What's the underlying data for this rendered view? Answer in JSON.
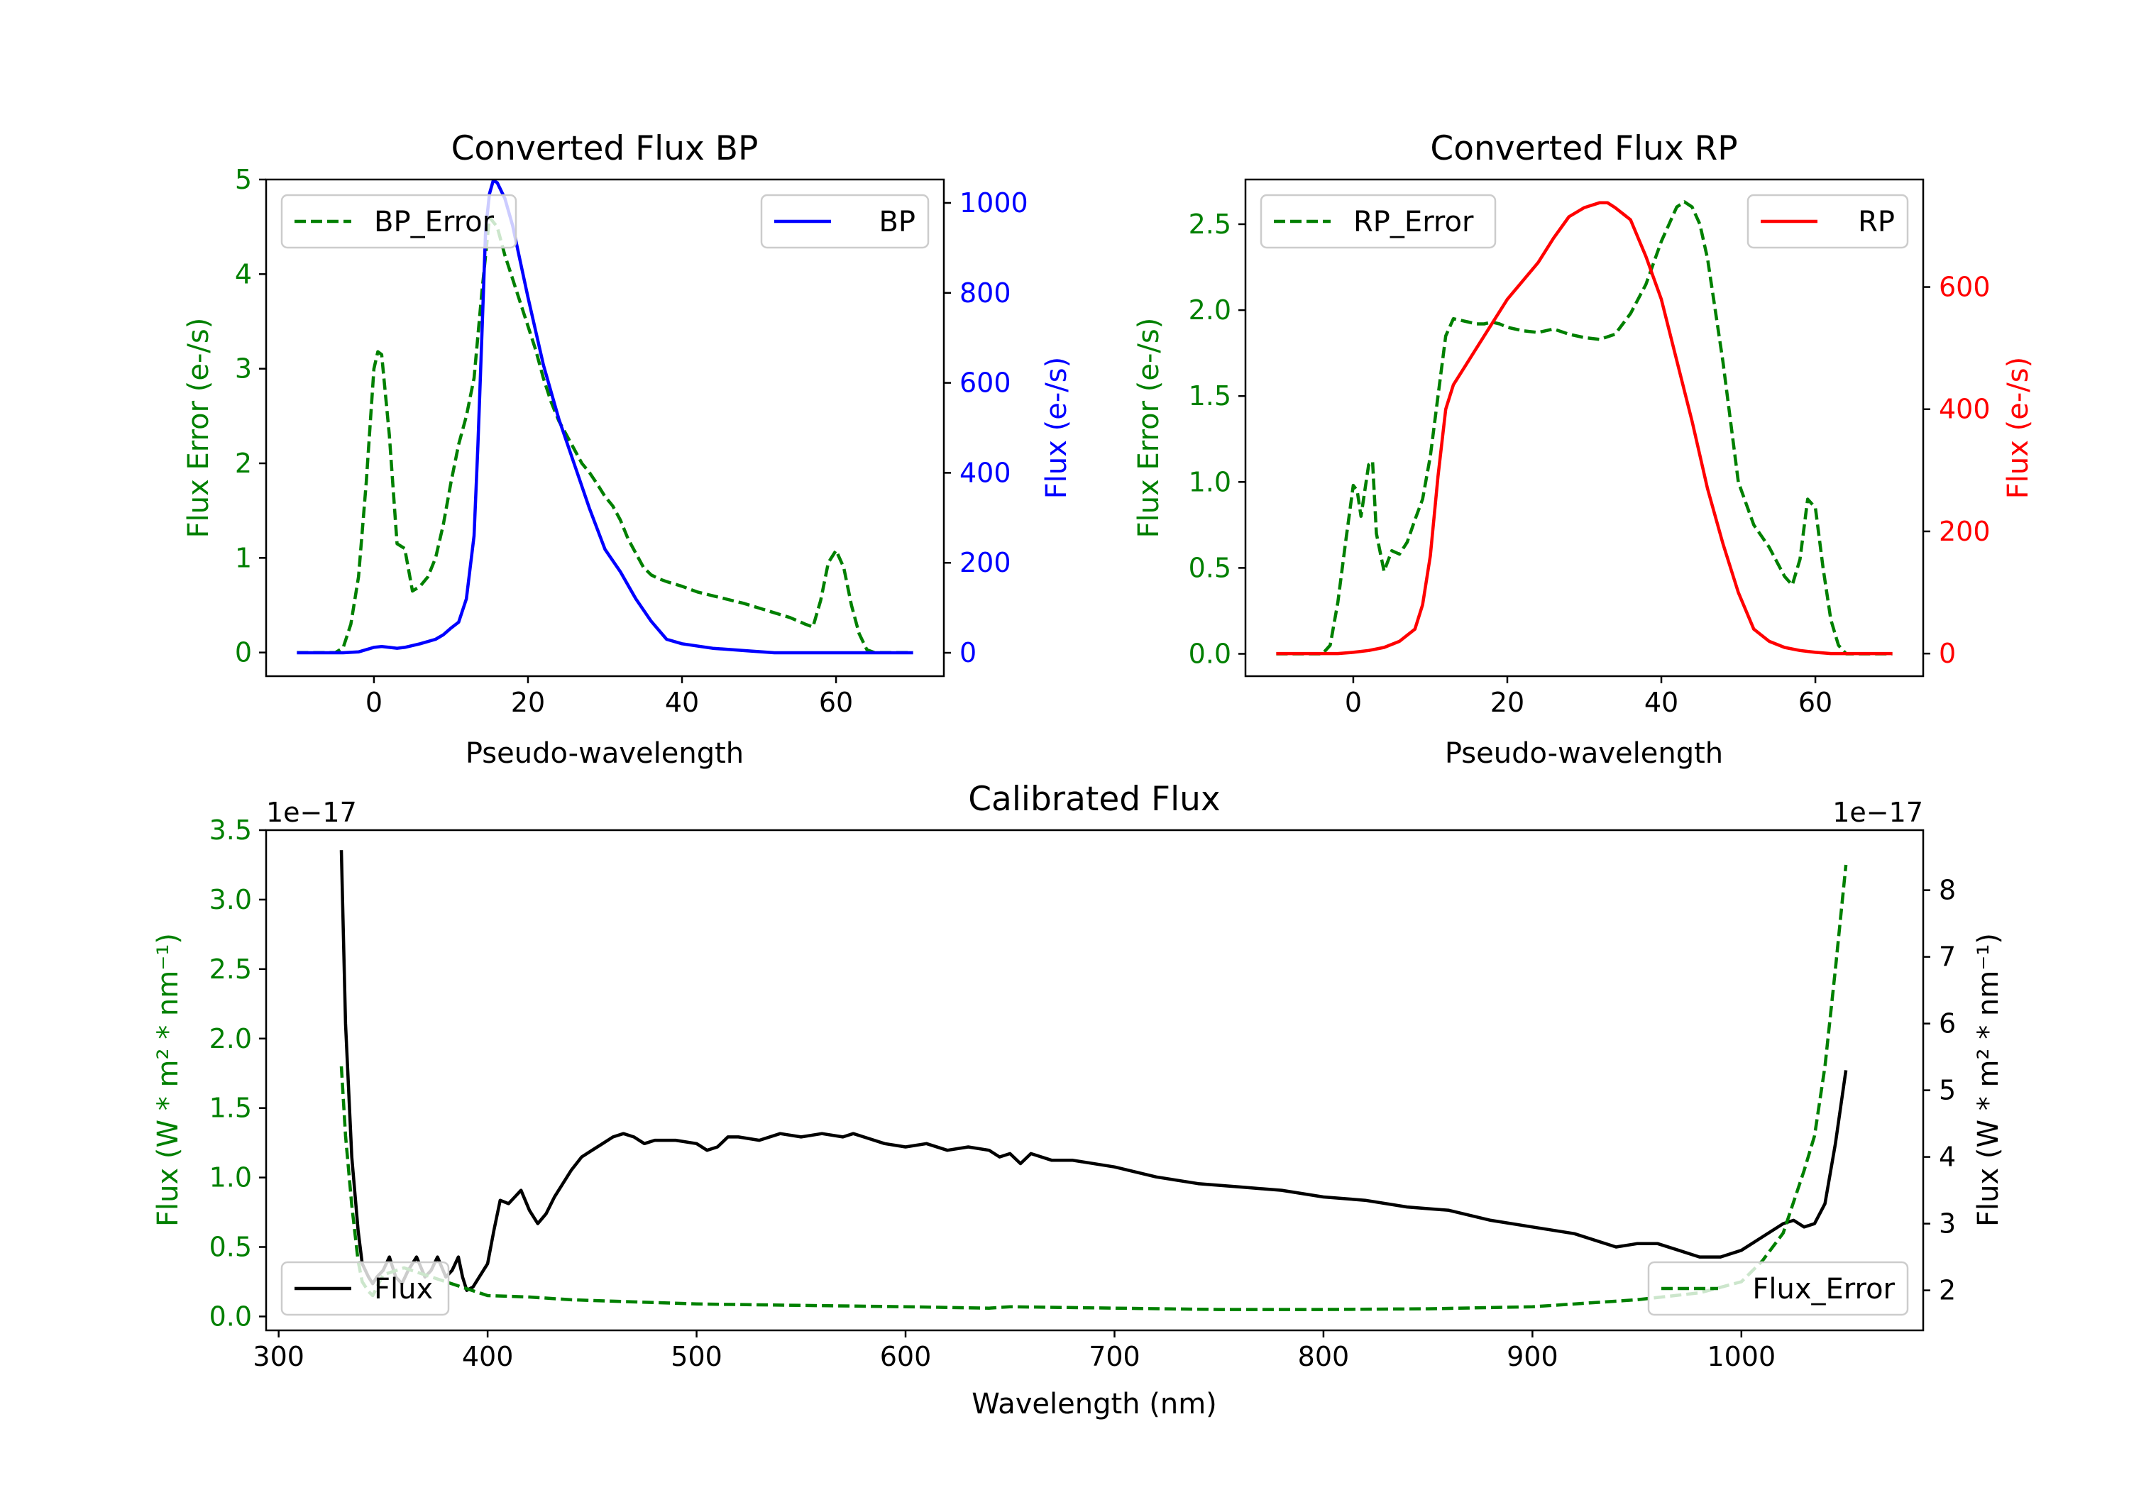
{
  "colors": {
    "error": "#008000",
    "bp": "#0000ff",
    "rp": "#ff0000",
    "flux": "#000000",
    "axis": "#000000"
  },
  "chart_data": [
    {
      "id": "bp",
      "type": "line",
      "title": "Converted Flux BP",
      "xlabel": "Pseudo-wavelength",
      "ylabel_left": "Flux Error (e-/s)",
      "ylabel_right": "Flux (e-/s)",
      "xlim": [
        -14,
        74
      ],
      "ylim_left": [
        -0.25,
        5.0
      ],
      "ylim_right": [
        -52,
        1052
      ],
      "xticks": [
        0,
        20,
        40,
        60
      ],
      "xtick_labels": [
        "0",
        "20",
        "40",
        "60"
      ],
      "yticks_left": [
        0,
        1,
        2,
        3,
        4,
        5
      ],
      "ytick_labels_left": [
        "0",
        "1",
        "2",
        "3",
        "4",
        "5"
      ],
      "yticks_right": [
        0,
        200,
        400,
        600,
        800,
        1000
      ],
      "ytick_labels_right": [
        "0",
        "200",
        "400",
        "600",
        "800",
        "1000"
      ],
      "legend_left": {
        "label": "BP_Error",
        "position": "upper left"
      },
      "legend_right": {
        "label": "BP",
        "position": "upper right"
      },
      "series": [
        {
          "name": "BP_Error",
          "axis": "left",
          "color": "error",
          "dash": true,
          "x": [
            -10,
            -5,
            -4,
            -3,
            -2,
            -1,
            0,
            0.5,
            1,
            2,
            3,
            4,
            5,
            6,
            7,
            8,
            9,
            10,
            11,
            12,
            13,
            14,
            15,
            16,
            17,
            18,
            19,
            20,
            21,
            22,
            23,
            24,
            25,
            26,
            27,
            28,
            29,
            30,
            31,
            32,
            33,
            34,
            35,
            36,
            37,
            38,
            40,
            42,
            44,
            46,
            48,
            50,
            52,
            54,
            56,
            57,
            58,
            59,
            60,
            61,
            62,
            63,
            64,
            65,
            66,
            68,
            70
          ],
          "y": [
            0,
            0,
            0.05,
            0.3,
            0.8,
            1.8,
            3.0,
            3.18,
            3.15,
            2.3,
            1.15,
            1.1,
            0.65,
            0.7,
            0.8,
            1.0,
            1.35,
            1.8,
            2.2,
            2.5,
            2.9,
            3.8,
            4.6,
            4.5,
            4.2,
            3.95,
            3.7,
            3.45,
            3.2,
            2.9,
            2.65,
            2.45,
            2.3,
            2.15,
            2.0,
            1.9,
            1.78,
            1.65,
            1.55,
            1.4,
            1.2,
            1.05,
            0.9,
            0.82,
            0.78,
            0.75,
            0.7,
            0.64,
            0.6,
            0.56,
            0.52,
            0.47,
            0.42,
            0.37,
            0.3,
            0.27,
            0.55,
            0.95,
            1.08,
            0.9,
            0.5,
            0.2,
            0.03,
            0,
            0,
            0,
            0
          ]
        },
        {
          "name": "BP",
          "axis": "right",
          "color": "bp",
          "dash": false,
          "x": [
            -10,
            -6,
            -4,
            -2,
            0,
            1,
            2,
            3,
            4,
            6,
            8,
            9,
            10,
            11,
            12,
            13,
            13.5,
            14,
            14.5,
            15,
            15.5,
            16,
            17,
            18,
            19,
            20,
            22,
            24,
            26,
            28,
            30,
            32,
            34,
            36,
            38,
            40,
            44,
            48,
            52,
            56,
            60,
            64,
            68,
            70
          ],
          "y": [
            0,
            0,
            0,
            2,
            12,
            14,
            12,
            10,
            12,
            20,
            30,
            40,
            55,
            68,
            120,
            260,
            460,
            700,
            940,
            1020,
            1050,
            1045,
            1010,
            950,
            870,
            790,
            640,
            520,
            420,
            320,
            230,
            180,
            120,
            70,
            30,
            20,
            10,
            5,
            0,
            0,
            0,
            0,
            0,
            0
          ]
        }
      ]
    },
    {
      "id": "rp",
      "type": "line",
      "title": "Converted Flux RP",
      "xlabel": "Pseudo-wavelength",
      "ylabel_left": "Flux Error (e-/s)",
      "ylabel_right": "Flux (e-/s)",
      "xlim": [
        -14,
        74
      ],
      "ylim_left": [
        -0.13,
        2.76
      ],
      "ylim_right": [
        -37,
        776
      ],
      "xticks": [
        0,
        20,
        40,
        60
      ],
      "xtick_labels": [
        "0",
        "20",
        "40",
        "60"
      ],
      "yticks_left": [
        0.0,
        0.5,
        1.0,
        1.5,
        2.0,
        2.5
      ],
      "ytick_labels_left": [
        "0.0",
        "0.5",
        "1.0",
        "1.5",
        "2.0",
        "2.5"
      ],
      "yticks_right": [
        0,
        200,
        400,
        600
      ],
      "ytick_labels_right": [
        "0",
        "200",
        "400",
        "600"
      ],
      "legend_left": {
        "label": "RP_Error",
        "position": "upper left"
      },
      "legend_right": {
        "label": "RP",
        "position": "upper right"
      },
      "series": [
        {
          "name": "RP_Error",
          "axis": "left",
          "color": "error",
          "dash": true,
          "x": [
            -10,
            -4,
            -3,
            -2,
            -1,
            0,
            0.5,
            1,
            2,
            2.5,
            3,
            4,
            5,
            6,
            7,
            8,
            9,
            10,
            11,
            12,
            13,
            14,
            15,
            16,
            17,
            18,
            19,
            20,
            22,
            24,
            26,
            28,
            30,
            32,
            34,
            36,
            38,
            40,
            41,
            42,
            43,
            44,
            45,
            46,
            47,
            48,
            50,
            52,
            54,
            56,
            57,
            58,
            59,
            60,
            61,
            62,
            63,
            64,
            66,
            70
          ],
          "y": [
            0,
            0,
            0.05,
            0.3,
            0.65,
            0.98,
            0.95,
            0.8,
            1.1,
            1.12,
            0.7,
            0.48,
            0.6,
            0.58,
            0.65,
            0.78,
            0.9,
            1.15,
            1.5,
            1.85,
            1.95,
            1.94,
            1.93,
            1.92,
            1.92,
            1.93,
            1.92,
            1.9,
            1.88,
            1.87,
            1.89,
            1.86,
            1.84,
            1.83,
            1.86,
            1.98,
            2.15,
            2.4,
            2.5,
            2.6,
            2.63,
            2.6,
            2.5,
            2.3,
            2.0,
            1.7,
            1.0,
            0.75,
            0.62,
            0.45,
            0.4,
            0.55,
            0.9,
            0.85,
            0.5,
            0.2,
            0.05,
            0,
            0,
            0
          ]
        },
        {
          "name": "RP",
          "axis": "right",
          "color": "rp",
          "dash": false,
          "x": [
            -10,
            -6,
            -4,
            -2,
            0,
            2,
            4,
            6,
            8,
            9,
            10,
            11,
            12,
            13,
            14,
            15,
            16,
            17,
            18,
            20,
            22,
            24,
            26,
            28,
            30,
            32,
            33,
            34,
            35,
            36,
            38,
            40,
            42,
            44,
            46,
            48,
            50,
            52,
            54,
            56,
            58,
            60,
            62,
            64,
            66,
            70
          ],
          "y": [
            0,
            0,
            0,
            0,
            2,
            5,
            10,
            20,
            40,
            80,
            160,
            290,
            400,
            440,
            460,
            480,
            500,
            520,
            540,
            580,
            610,
            640,
            680,
            715,
            730,
            738,
            738,
            730,
            720,
            710,
            650,
            580,
            480,
            380,
            270,
            180,
            100,
            40,
            20,
            10,
            5,
            2,
            0,
            0,
            0,
            0
          ]
        }
      ]
    },
    {
      "id": "calibrated",
      "type": "line",
      "title": "Calibrated Flux",
      "xlabel": "Wavelength (nm)",
      "ylabel_left": "Flux (W * m² * nm⁻¹)",
      "ylabel_right": "Flux (W * m² * nm⁻¹)",
      "offset_left": "1e−17",
      "offset_right": "1e−17",
      "xlim": [
        294,
        1087
      ],
      "ylim_left": [
        -0.1,
        3.5
      ],
      "ylim_right": [
        1.4,
        8.9
      ],
      "xticks": [
        300,
        400,
        500,
        600,
        700,
        800,
        900,
        1000
      ],
      "xtick_labels": [
        "300",
        "400",
        "500",
        "600",
        "700",
        "800",
        "900",
        "1000"
      ],
      "yticks_left": [
        0.0,
        0.5,
        1.0,
        1.5,
        2.0,
        2.5,
        3.0,
        3.5
      ],
      "ytick_labels_left": [
        "0.0",
        "0.5",
        "1.0",
        "1.5",
        "2.0",
        "2.5",
        "3.0",
        "3.5"
      ],
      "yticks_right": [
        2,
        3,
        4,
        5,
        6,
        7,
        8
      ],
      "ytick_labels_right": [
        "2",
        "3",
        "4",
        "5",
        "6",
        "7",
        "8"
      ],
      "legend_left": {
        "label": "Flux",
        "position": "lower left"
      },
      "legend_right": {
        "label": "Flux_Error",
        "position": "lower right"
      },
      "series": [
        {
          "name": "Flux",
          "axis": "right",
          "color": "flux",
          "dash": false,
          "x": [
            330,
            332,
            335,
            338,
            340,
            343,
            345,
            347,
            350,
            353,
            356,
            359,
            362,
            366,
            370,
            373,
            376,
            380,
            383,
            386,
            388,
            390,
            393,
            396,
            400,
            403,
            406,
            410,
            413,
            416,
            420,
            424,
            428,
            432,
            436,
            440,
            445,
            450,
            455,
            460,
            465,
            470,
            475,
            480,
            490,
            500,
            505,
            510,
            515,
            520,
            530,
            540,
            550,
            560,
            570,
            575,
            580,
            590,
            600,
            610,
            620,
            630,
            640,
            645,
            650,
            655,
            660,
            670,
            680,
            700,
            720,
            740,
            760,
            780,
            800,
            820,
            840,
            860,
            880,
            900,
            920,
            940,
            950,
            960,
            970,
            980,
            990,
            1000,
            1010,
            1020,
            1025,
            1030,
            1035,
            1040,
            1045,
            1050
          ],
          "x_unit": "nm",
          "y": [
            8.6,
            6.0,
            4.0,
            2.9,
            2.4,
            2.2,
            2.1,
            2.2,
            2.3,
            2.5,
            2.2,
            2.1,
            2.3,
            2.5,
            2.2,
            2.3,
            2.5,
            2.2,
            2.3,
            2.5,
            2.2,
            2.0,
            2.05,
            2.2,
            2.4,
            2.9,
            3.35,
            3.3,
            3.4,
            3.5,
            3.2,
            3.0,
            3.15,
            3.4,
            3.6,
            3.8,
            4.0,
            4.1,
            4.2,
            4.3,
            4.35,
            4.3,
            4.2,
            4.25,
            4.25,
            4.2,
            4.1,
            4.15,
            4.3,
            4.3,
            4.25,
            4.35,
            4.3,
            4.35,
            4.3,
            4.35,
            4.3,
            4.2,
            4.15,
            4.2,
            4.1,
            4.15,
            4.1,
            4.0,
            4.05,
            3.9,
            4.05,
            3.95,
            3.95,
            3.85,
            3.7,
            3.6,
            3.55,
            3.5,
            3.4,
            3.35,
            3.25,
            3.2,
            3.05,
            2.95,
            2.85,
            2.65,
            2.7,
            2.7,
            2.6,
            2.5,
            2.5,
            2.6,
            2.8,
            3.0,
            3.05,
            2.95,
            3.0,
            3.3,
            4.2,
            5.3
          ]
        },
        {
          "name": "Flux_Error",
          "axis": "left",
          "color": "error",
          "dash": true,
          "x": [
            330,
            332,
            335,
            338,
            340,
            343,
            345,
            350,
            360,
            370,
            380,
            390,
            400,
            420,
            440,
            460,
            480,
            500,
            550,
            600,
            640,
            650,
            700,
            750,
            800,
            850,
            900,
            950,
            980,
            1000,
            1010,
            1020,
            1030,
            1035,
            1040,
            1045,
            1050
          ],
          "y": [
            1.8,
            1.3,
            0.8,
            0.4,
            0.25,
            0.18,
            0.15,
            0.3,
            0.35,
            0.3,
            0.25,
            0.2,
            0.15,
            0.14,
            0.12,
            0.11,
            0.1,
            0.09,
            0.08,
            0.07,
            0.06,
            0.07,
            0.06,
            0.05,
            0.05,
            0.055,
            0.07,
            0.12,
            0.17,
            0.25,
            0.4,
            0.6,
            1.05,
            1.3,
            1.8,
            2.5,
            3.25
          ]
        }
      ]
    }
  ]
}
